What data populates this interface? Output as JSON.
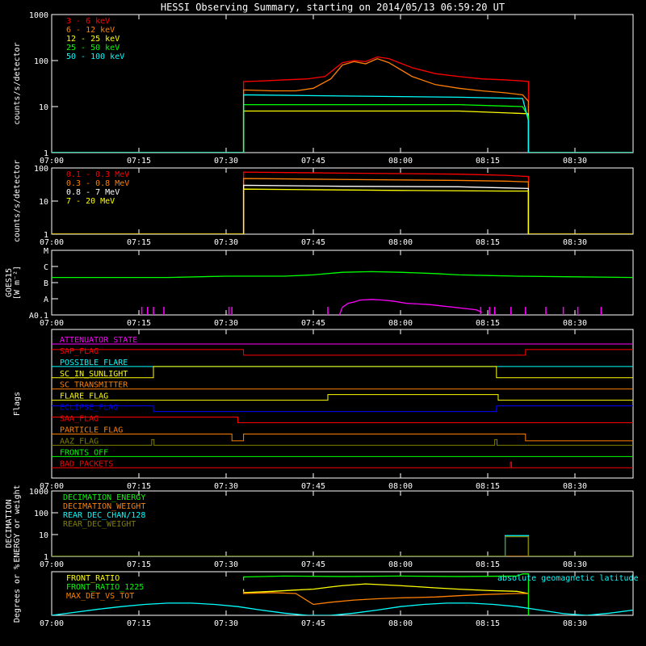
{
  "chart_data": {
    "title": "HESSI Observing Summary, starting on 2014/05/13 06:59:20 UT",
    "time_ticks": [
      "07:00",
      "07:15",
      "07:30",
      "07:45",
      "08:00",
      "08:15",
      "08:30"
    ],
    "xlim_minutes": [
      0,
      100
    ],
    "panels": [
      {
        "id": "lightcurves-low",
        "type": "line",
        "ylabel": "counts/s/detector",
        "yscale": "log",
        "ylim": [
          1,
          1000
        ],
        "yticks": [
          "1",
          "10",
          "100",
          "1000"
        ],
        "legend_placement": "top-left",
        "series": [
          {
            "name": "3 - 6 keV",
            "color": "#ff0000",
            "x": [
              0,
              33,
              33,
              36,
              40,
              44,
              47,
              50,
              52,
              54,
              56,
              58,
              62,
              66,
              70,
              74,
              78,
              81,
              82,
              82,
              100
            ],
            "y": [
              1,
              1,
              35,
              36,
              38,
              40,
              45,
              90,
              100,
              95,
              120,
              110,
              70,
              52,
              45,
              40,
              38,
              36,
              35,
              1,
              1
            ]
          },
          {
            "name": "6 - 12 keV",
            "color": "#ff8000",
            "x": [
              0,
              33,
              33,
              38,
              42,
              45,
              48,
              50,
              52,
              54,
              56,
              58,
              62,
              66,
              70,
              74,
              78,
              81,
              82,
              82,
              100
            ],
            "y": [
              1,
              1,
              23,
              22,
              22,
              25,
              40,
              80,
              95,
              85,
              110,
              90,
              45,
              30,
              25,
              22,
              20,
              18,
              13,
              1,
              1
            ]
          },
          {
            "name": "12 - 25 keV",
            "color": "#ffff00",
            "x": [
              0,
              33,
              33,
              50,
              70,
              82,
              82,
              100
            ],
            "y": [
              1,
              1,
              8,
              8,
              8,
              7,
              1,
              1
            ]
          },
          {
            "name": "25 - 50 keV",
            "color": "#00ff00",
            "x": [
              0,
              33,
              33,
              50,
              70,
              81,
              82,
              82,
              100
            ],
            "y": [
              1,
              1,
              11,
              11,
              11,
              10,
              6,
              1,
              1
            ]
          },
          {
            "name": "50 - 100 keV",
            "color": "#00ffff",
            "x": [
              0,
              33,
              33,
              50,
              70,
              81,
              82,
              82,
              100
            ],
            "y": [
              1,
              1,
              18,
              17,
              16,
              15,
              5,
              1,
              1
            ]
          }
        ]
      },
      {
        "id": "lightcurves-high",
        "type": "line",
        "ylabel": "counts/s/detector",
        "yscale": "log",
        "ylim": [
          1,
          100
        ],
        "yticks": [
          "1",
          "10",
          "100"
        ],
        "legend_placement": "top-left",
        "series": [
          {
            "name": "0.1 - 0.3 MeV",
            "color": "#ff0000",
            "x": [
              0,
              33,
              33,
              50,
              70,
              78,
              82,
              82,
              100
            ],
            "y": [
              1,
              1,
              75,
              70,
              65,
              60,
              55,
              1,
              1
            ]
          },
          {
            "name": "0.3 - 0.8 MeV",
            "color": "#ff8000",
            "x": [
              0,
              33,
              33,
              50,
              70,
              78,
              82,
              82,
              100
            ],
            "y": [
              1,
              1,
              48,
              45,
              42,
              40,
              38,
              1,
              1
            ]
          },
          {
            "name": "0.8 - 7 MeV",
            "color": "#ffffff",
            "x": [
              0,
              33,
              33,
              50,
              70,
              78,
              82,
              82,
              100
            ],
            "y": [
              1,
              1,
              30,
              28,
              27,
              25,
              24,
              1,
              1
            ]
          },
          {
            "name": "7 - 20 MeV",
            "color": "#ffff00",
            "x": [
              0,
              33,
              33,
              45,
              60,
              78,
              82,
              82,
              100
            ],
            "y": [
              1,
              1,
              23,
              22,
              21,
              20,
              20,
              1,
              1
            ]
          }
        ]
      },
      {
        "id": "goes",
        "type": "line",
        "ylabel": "GOES15",
        "ylabel2": "[W m⁻²]",
        "ylim": [
          0,
          5
        ],
        "yticks": [
          "A0.1",
          "A",
          "B",
          "C",
          "M"
        ],
        "series": [
          {
            "name": "goes-long",
            "color": "#00ff00",
            "x": [
              0,
              10,
              20,
              30,
              40,
              45,
              50,
              55,
              60,
              66,
              70,
              75,
              80,
              90,
              100
            ],
            "y": [
              2.9,
              2.9,
              2.9,
              3.0,
              3.0,
              3.1,
              3.3,
              3.35,
              3.3,
              3.2,
              3.1,
              3.05,
              3.0,
              2.95,
              2.9
            ]
          },
          {
            "name": "goes-short",
            "color": "#ff00ff",
            "x": [
              49.5,
              50,
              51,
              52,
              53,
              55,
              57,
              59,
              61,
              63,
              65,
              67,
              69,
              71,
              73,
              74
            ],
            "y": [
              0,
              0.6,
              0.9,
              1.0,
              1.15,
              1.2,
              1.15,
              1.05,
              0.9,
              0.85,
              0.8,
              0.7,
              0.6,
              0.5,
              0.4,
              0.2
            ]
          }
        ],
        "spikes_x": [
          15.5,
          16.5,
          17.5,
          19.3,
          30.5,
          31.0,
          47.5,
          73.8,
          75.3,
          76.2,
          79.0,
          81.5,
          85.0,
          88.0,
          90.5,
          94.5
        ]
      },
      {
        "id": "flags",
        "type": "line",
        "ylabel": "Flags",
        "ylim": [
          0,
          13
        ],
        "rows": [
          {
            "name": "ATTENUATOR_STATE",
            "color": "#ff00ff",
            "x": [
              0,
              100
            ],
            "y": [
              0,
              0
            ]
          },
          {
            "name": "SAP_FLAG",
            "color": "#ff0000",
            "x": [
              0,
              33,
              33,
              81.5,
              81.5,
              100
            ],
            "y": [
              0.5,
              0.5,
              0,
              0,
              0.5,
              0.5
            ]
          },
          {
            "name": "POSSIBLE_FLARE",
            "color": "#00ffff",
            "x": [
              0,
              100
            ],
            "y": [
              0,
              0
            ]
          },
          {
            "name": "SC_IN_SUNLIGHT",
            "color": "#ffff00",
            "x": [
              0,
              17.5,
              17.5,
              76.5,
              76.5,
              100
            ],
            "y": [
              0,
              0,
              1,
              1,
              0,
              0
            ]
          },
          {
            "name": "SC_TRANSMITTER",
            "color": "#ff8000",
            "x": [
              0,
              100
            ],
            "y": [
              0,
              0
            ]
          },
          {
            "name": "FLARE_FLAG",
            "color": "#ffff00",
            "x": [
              0,
              47.5,
              47.5,
              76.8,
              76.8,
              100
            ],
            "y": [
              0,
              0,
              0.5,
              0.5,
              0,
              0
            ]
          },
          {
            "name": "ECLIPSE_FLAG",
            "color": "#0000ff",
            "x": [
              0,
              17.5,
              17.5,
              76.5,
              76.5,
              100
            ],
            "y": [
              0.5,
              0.5,
              0,
              0,
              0.5,
              0.5
            ]
          },
          {
            "name": "SAA_FLAG",
            "color": "#ff0000",
            "x": [
              0,
              32,
              32,
              100
            ],
            "y": [
              0.5,
              0.5,
              0,
              0
            ]
          },
          {
            "name": "PARTICLE_FLAG",
            "color": "#ff8000",
            "x": [
              0,
              31,
              31,
              33,
              33,
              81.5,
              81.5,
              100
            ],
            "y": [
              0,
              0,
              -0.6,
              -0.6,
              0,
              0,
              -0.6,
              -0.6
            ]
          },
          {
            "name": "AAZ_FLAG",
            "color": "#808000",
            "x": [
              0,
              17.2,
              17.2,
              17.6,
              17.6,
              76.2,
              76.2,
              76.6,
              76.6,
              100
            ],
            "y": [
              0,
              0,
              0.5,
              0.5,
              0,
              0,
              0.5,
              0.5,
              0,
              0
            ]
          },
          {
            "name": "FRONTS_OFF",
            "color": "#00ff00",
            "x": [
              0,
              100
            ],
            "y": [
              0,
              0
            ]
          },
          {
            "name": "BAD_PACKETS",
            "color": "#ff0000",
            "x": [
              0,
              78.9,
              78.9,
              79.1,
              79.1,
              100
            ],
            "y": [
              0,
              0,
              0.5,
              0.5,
              0,
              0
            ]
          }
        ]
      },
      {
        "id": "decimation",
        "type": "line",
        "ylabel": "DECIMATION",
        "ylabel2": "ENERGY or weight",
        "yscale": "log",
        "ylim": [
          1,
          1000
        ],
        "yticks": [
          "1",
          "10",
          "100",
          "1000"
        ],
        "legend_placement": "top-left",
        "series": [
          {
            "name": "DECIMATION_ENERGY",
            "color": "#00ff00",
            "x": [
              0,
              100
            ],
            "y": [
              1,
              1
            ]
          },
          {
            "name": "DECIMATION_WEIGHT",
            "color": "#ff8000",
            "x": [
              0,
              100
            ],
            "y": [
              1,
              1
            ]
          },
          {
            "name": "REAR_DEC_CHAN/128",
            "color": "#00ffff",
            "x": [
              0,
              78,
              78,
              82,
              82,
              100
            ],
            "y": [
              1,
              1,
              9,
              9,
              1,
              1
            ]
          },
          {
            "name": "REAR_DEC_WEIGHT",
            "color": "#808000",
            "x": [
              0,
              78,
              78,
              82,
              82,
              100
            ],
            "y": [
              1,
              1,
              8,
              8,
              1,
              1
            ]
          }
        ]
      },
      {
        "id": "ratios",
        "type": "line",
        "ylabel": "Degrees or %",
        "ylim": [
          0,
          100
        ],
        "legend_placement": "top-left",
        "annotation": "absolute geomagnetic latitude",
        "series": [
          {
            "name": "FRONT_RATIO",
            "color": "#ffff00",
            "x": [
              33,
              33,
              38,
              42,
              45,
              48,
              50,
              54,
              60,
              66,
              70,
              75,
              80,
              82
            ],
            "y": [
              60,
              52,
              55,
              58,
              60,
              65,
              68,
              72,
              68,
              63,
              60,
              57,
              55,
              50
            ]
          },
          {
            "name": "FRONT_RATIO_1225",
            "color": "#00ff00",
            "x": [
              33,
              33,
              40,
              50,
              60,
              70,
              80,
              81,
              82,
              82
            ],
            "y": [
              80,
              88,
              90,
              89,
              90,
              89,
              90,
              95,
              95,
              0
            ]
          },
          {
            "name": "MAX_DET_VS_TOT",
            "color": "#ff8000",
            "x": [
              33,
              33,
              38,
              42,
              45,
              48,
              52,
              56,
              60,
              66,
              70,
              75,
              80,
              82
            ],
            "y": [
              55,
              50,
              52,
              50,
              25,
              30,
              35,
              38,
              40,
              42,
              45,
              48,
              50,
              50
            ]
          },
          {
            "name": "absolute geomagnetic latitude",
            "color": "#00ffff",
            "x": [
              0,
              4,
              8,
              12,
              16,
              20,
              24,
              28,
              32,
              36,
              40,
              44,
              46,
              48,
              52,
              56,
              60,
              64,
              68,
              72,
              76,
              80,
              84,
              88,
              92,
              96,
              100
            ],
            "y": [
              0,
              7,
              14,
              20,
              25,
              28,
              28,
              25,
              20,
              12,
              5,
              0,
              0,
              0,
              5,
              12,
              20,
              25,
              28,
              28,
              25,
              20,
              12,
              4,
              0,
              5,
              12
            ]
          }
        ]
      }
    ]
  }
}
